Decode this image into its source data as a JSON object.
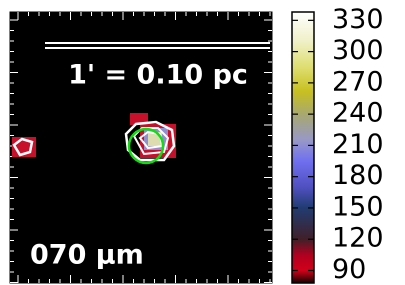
{
  "chart_data": {
    "type": "image",
    "scale_label": "1' = 0.10 pc",
    "band_label": "070 μm",
    "colorbar": {
      "clim": [
        78,
        338
      ],
      "ticks": [
        90,
        120,
        150,
        180,
        210,
        240,
        270,
        300,
        330
      ],
      "colormap": [
        {
          "value": 78,
          "color": "#150000"
        },
        {
          "value": 90,
          "color": "#d0001a"
        },
        {
          "value": 105,
          "color": "#b00020"
        },
        {
          "value": 120,
          "color": "#402028"
        },
        {
          "value": 150,
          "color": "#203c70"
        },
        {
          "value": 170,
          "color": "#5050c0"
        },
        {
          "value": 195,
          "color": "#7070f0"
        },
        {
          "value": 215,
          "color": "#9898c8"
        },
        {
          "value": 240,
          "color": "#a8a870"
        },
        {
          "value": 262,
          "color": "#c8c020"
        },
        {
          "value": 285,
          "color": "#dede70"
        },
        {
          "value": 310,
          "color": "#f0f0c8"
        },
        {
          "value": 338,
          "color": "#ffffff"
        }
      ]
    }
  }
}
